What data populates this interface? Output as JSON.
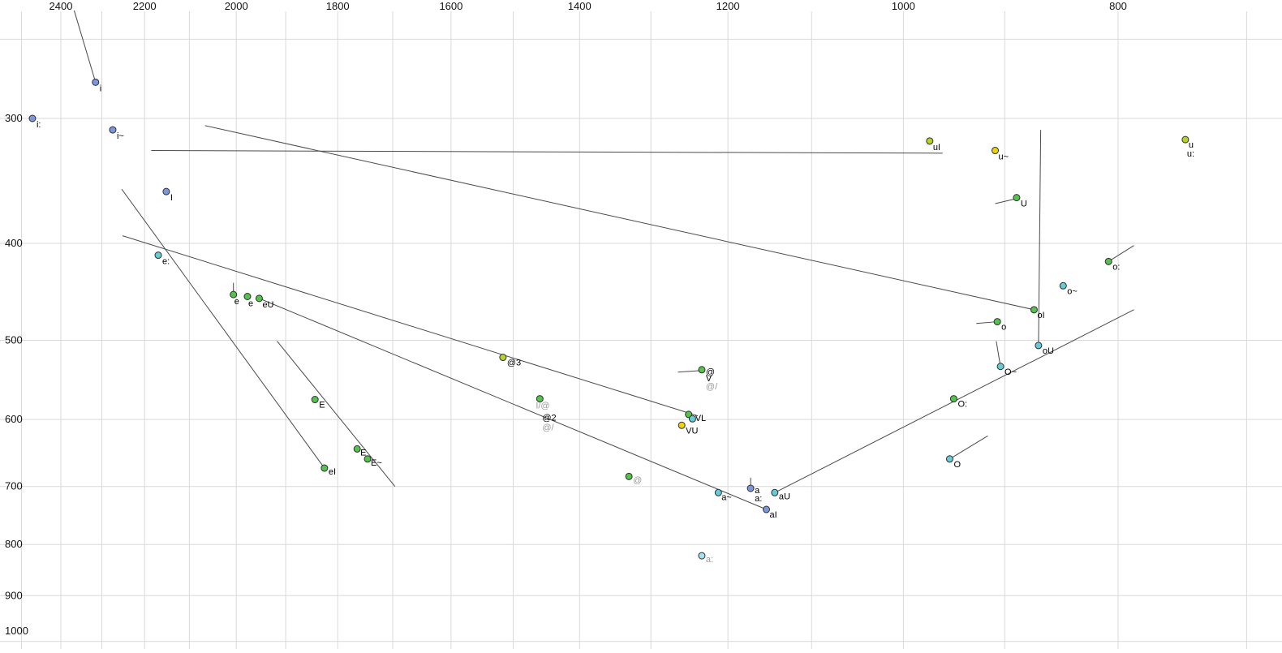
{
  "chart_data": {
    "type": "scatter",
    "title": "",
    "xlabel": "",
    "ylabel": "",
    "x_axis": {
      "scale": "log",
      "reversed": true,
      "ticks": [
        2400,
        2200,
        2000,
        1800,
        1600,
        1400,
        1200,
        1000,
        800
      ],
      "grid_values": [
        2500,
        2400,
        2300,
        2200,
        2100,
        2000,
        1900,
        1800,
        1700,
        1600,
        1500,
        1400,
        1300,
        1200,
        1100,
        1000,
        900,
        800,
        700
      ]
    },
    "y_axis": {
      "scale": "log",
      "reversed": true,
      "ticks": [
        300,
        400,
        500,
        600,
        700,
        800,
        900,
        1000
      ],
      "grid_values": [
        250,
        300,
        400,
        500,
        600,
        700,
        800,
        900,
        1000
      ]
    },
    "points": [
      {
        "f2": 2315,
        "f1": 276,
        "c": "blue",
        "labels": [
          [
            "i",
            5,
            11,
            false
          ]
        ]
      },
      {
        "f2": 2472,
        "f1": 300,
        "c": "blue",
        "labels": [
          [
            "i:",
            5,
            11,
            false
          ]
        ]
      },
      {
        "f2": 2274,
        "f1": 308,
        "c": "blue",
        "labels": [
          [
            "i~",
            5,
            11,
            false
          ]
        ]
      },
      {
        "f2": 2151,
        "f1": 355,
        "c": "blue",
        "labels": [
          [
            "I",
            5,
            11,
            false
          ]
        ]
      },
      {
        "f2": 2169,
        "f1": 411,
        "c": "cyan",
        "labels": [
          [
            "e:",
            5,
            11,
            false
          ]
        ]
      },
      {
        "f2": 2006,
        "f1": 450,
        "c": "green",
        "labels": [
          [
            "e",
            1,
            12,
            false
          ]
        ]
      },
      {
        "f2": 1977,
        "f1": 452,
        "c": "green",
        "labels": [
          [
            "e",
            1,
            12,
            false
          ]
        ]
      },
      {
        "f2": 1953,
        "f1": 454,
        "c": "green",
        "labels": [
          [
            "eU",
            4,
            11,
            false
          ]
        ]
      },
      {
        "f2": 973,
        "f1": 316,
        "c": "yellowgreen",
        "labels": [
          [
            "uI",
            4,
            11,
            false
          ]
        ]
      },
      {
        "f2": 909,
        "f1": 323,
        "c": "yellow",
        "labels": [
          [
            "u~",
            4,
            11,
            false
          ]
        ]
      },
      {
        "f2": 746,
        "f1": 315,
        "c": "yellowgreen",
        "labels": [
          [
            "u",
            4,
            10,
            false
          ],
          [
            "u:",
            2,
            21,
            false
          ]
        ]
      },
      {
        "f2": 889,
        "f1": 360,
        "c": "green",
        "labels": [
          [
            "U",
            5,
            11,
            false
          ]
        ]
      },
      {
        "f2": 808,
        "f1": 417,
        "c": "green",
        "labels": [
          [
            "o:",
            5,
            10,
            false
          ]
        ]
      },
      {
        "f2": 847,
        "f1": 441,
        "c": "cyan",
        "labels": [
          [
            "o~",
            5,
            10,
            false
          ]
        ]
      },
      {
        "f2": 873,
        "f1": 466,
        "c": "green",
        "labels": [
          [
            "oI",
            4,
            10,
            false
          ]
        ]
      },
      {
        "f2": 907,
        "f1": 479,
        "c": "green",
        "labels": [
          [
            "o",
            5,
            10,
            false
          ]
        ]
      },
      {
        "f2": 869,
        "f1": 506,
        "c": "cyan",
        "labels": [
          [
            "oU",
            5,
            10,
            false
          ]
        ]
      },
      {
        "f2": 904,
        "f1": 531,
        "c": "cyan",
        "labels": [
          [
            "O~",
            5,
            10,
            false
          ]
        ]
      },
      {
        "f2": 949,
        "f1": 572,
        "c": "green",
        "labels": [
          [
            "O:",
            5,
            10,
            false
          ]
        ]
      },
      {
        "f2": 953,
        "f1": 657,
        "c": "cyan",
        "labels": [
          [
            "O",
            5,
            10,
            false
          ]
        ]
      },
      {
        "f2": 1516,
        "f1": 520,
        "c": "yellowgreen",
        "labels": [
          [
            "@3",
            5,
            10,
            false
          ]
        ]
      },
      {
        "f2": 1233,
        "f1": 535,
        "c": "green",
        "labels": [
          [
            "@",
            5,
            6,
            false
          ],
          [
            "V",
            5,
            14,
            false
          ],
          [
            "@/",
            5,
            24,
            true
          ]
        ]
      },
      {
        "f2": 1459,
        "f1": 572,
        "c": "green",
        "labels": [
          [
            "I/@",
            -5,
            12,
            true
          ],
          [
            "@2",
            3,
            27,
            false
          ],
          [
            "@/",
            3,
            39,
            true
          ]
        ]
      },
      {
        "f2": 1250,
        "f1": 593,
        "c": "green",
        "labels": [
          [
            "VL",
            8,
            8,
            false
          ]
        ]
      },
      {
        "f2": 1245,
        "f1": 599,
        "c": "cyan",
        "labels": []
      },
      {
        "f2": 1259,
        "f1": 608,
        "c": "yellow",
        "labels": [
          [
            "VU",
            5,
            10,
            false
          ]
        ]
      },
      {
        "f2": 1843,
        "f1": 573,
        "c": "green",
        "labels": [
          [
            "E",
            5,
            10,
            false
          ]
        ]
      },
      {
        "f2": 1764,
        "f1": 642,
        "c": "green",
        "labels": [
          [
            "E",
            4,
            8,
            false
          ]
        ]
      },
      {
        "f2": 1745,
        "f1": 657,
        "c": "green",
        "labels": [
          [
            "E~",
            4,
            8,
            false
          ]
        ]
      },
      {
        "f2": 1825,
        "f1": 671,
        "c": "green",
        "labels": [
          [
            "eI",
            5,
            8,
            false
          ]
        ]
      },
      {
        "f2": 1330,
        "f1": 684,
        "c": "green",
        "labels": [
          [
            "@",
            5,
            8,
            true
          ]
        ]
      },
      {
        "f2": 1212,
        "f1": 710,
        "c": "cyan",
        "labels": [
          [
            "a~",
            4,
            9,
            false
          ]
        ]
      },
      {
        "f2": 1172,
        "f1": 703,
        "c": "blue",
        "labels": [
          [
            "a",
            5,
            6,
            false
          ],
          [
            "a:",
            5,
            16,
            false
          ]
        ]
      },
      {
        "f2": 1143,
        "f1": 710,
        "c": "cyan",
        "labels": [
          [
            "aU",
            5,
            8,
            false
          ]
        ]
      },
      {
        "f2": 1153,
        "f1": 738,
        "c": "blue",
        "labels": [
          [
            "aI",
            4,
            10,
            false
          ]
        ]
      },
      {
        "f2": 1233,
        "f1": 821,
        "c": "lightcyan",
        "labels": [
          [
            "a:",
            5,
            8,
            true
          ]
        ]
      }
    ],
    "lines": [
      {
        "a": [
          2367,
          234
        ],
        "b": [
          2315,
          276
        ]
      },
      {
        "a": [
          2185,
          323
        ],
        "b": [
          960,
          325
        ]
      },
      {
        "a": [
          2066,
          305
        ],
        "b": [
          873,
          466
        ]
      },
      {
        "a": [
          2251,
          393
        ],
        "b": [
          1238,
          595
        ]
      },
      {
        "a": [
          1953,
          454
        ],
        "b": [
          1153,
          738
        ]
      },
      {
        "a": [
          1143,
          710
        ],
        "b": [
          787,
          466
        ]
      },
      {
        "a": [
          867,
          308
        ],
        "b": [
          869,
          506
        ]
      },
      {
        "a": [
          2253,
          353
        ],
        "b": [
          1825,
          671
        ]
      },
      {
        "a": [
          1917,
          501
        ],
        "b": [
          1696,
          700
        ]
      },
      {
        "a": [
          909,
          365
        ],
        "b": [
          890,
          361
        ]
      },
      {
        "a": [
          927,
          481
        ],
        "b": [
          907,
          479
        ]
      },
      {
        "a": [
          787,
          402
        ],
        "b": [
          808,
          417
        ]
      },
      {
        "a": [
          908,
          501
        ],
        "b": [
          904,
          531
        ]
      },
      {
        "a": [
          916,
          623
        ],
        "b": [
          953,
          657
        ]
      },
      {
        "a": [
          1264,
          538
        ],
        "b": [
          1233,
          536
        ]
      },
      {
        "a": [
          2006,
          438
        ],
        "b": [
          2006,
          450
        ]
      },
      {
        "a": [
          1172,
          686
        ],
        "b": [
          1172,
          703
        ]
      }
    ],
    "colors": {
      "blue": "#7b97dc",
      "cyan": "#63ccd6",
      "lightcyan": "#a5e2ef",
      "green": "#55c24e",
      "yellowgreen": "#b4d327",
      "yellow": "#f0d400",
      "grid": "#d9d9d9",
      "trajectory": "#4a4a4a",
      "point_stroke": "#2f2f2f",
      "black_label": "#000000",
      "gray_label": "#9a9a9a",
      "axis_label": "#111111",
      "background": "#ffffff"
    }
  }
}
